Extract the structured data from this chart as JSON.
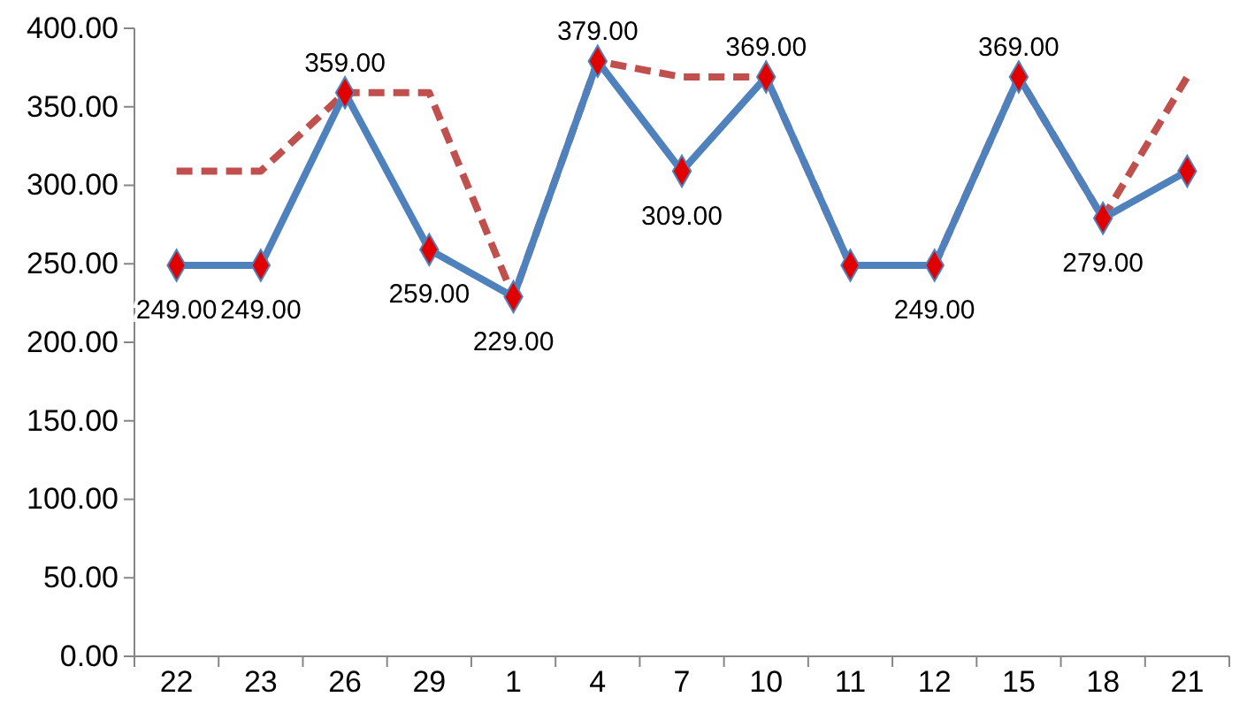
{
  "chart_data": {
    "type": "line",
    "categories": [
      "22",
      "23",
      "26",
      "29",
      "1",
      "4",
      "7",
      "10",
      "11",
      "12",
      "15",
      "18",
      "21"
    ],
    "series": [
      {
        "color": "#4f81bd",
        "line_style": "solid",
        "marker": "diamond",
        "values": [
          249,
          249,
          359,
          259,
          229,
          379,
          309,
          369,
          249,
          249,
          369,
          279,
          309
        ],
        "value_labels": [
          "249.00",
          "249.00",
          "359.00",
          "259.00",
          "229.00",
          "379.00",
          "309.00",
          "369.00",
          null,
          "249.00",
          "369.00",
          "279.00",
          null
        ]
      },
      {
        "color": "#c0504d",
        "line_style": "dashed",
        "marker": "none",
        "values": [
          309,
          309,
          359,
          359,
          229,
          379,
          369,
          369,
          249,
          249,
          369,
          279,
          369
        ]
      }
    ],
    "ylim": [
      0,
      400
    ],
    "yticks": [
      {
        "value": 0,
        "label": "0.00"
      },
      {
        "value": 50,
        "label": "50.00"
      },
      {
        "value": 100,
        "label": "100.00"
      },
      {
        "value": 150,
        "label": "150.00"
      },
      {
        "value": 200,
        "label": "200.00"
      },
      {
        "value": 250,
        "label": "250.00"
      },
      {
        "value": 300,
        "label": "300.00"
      },
      {
        "value": 350,
        "label": "350.00"
      },
      {
        "value": 400,
        "label": "400.00"
      }
    ],
    "grid": false
  }
}
